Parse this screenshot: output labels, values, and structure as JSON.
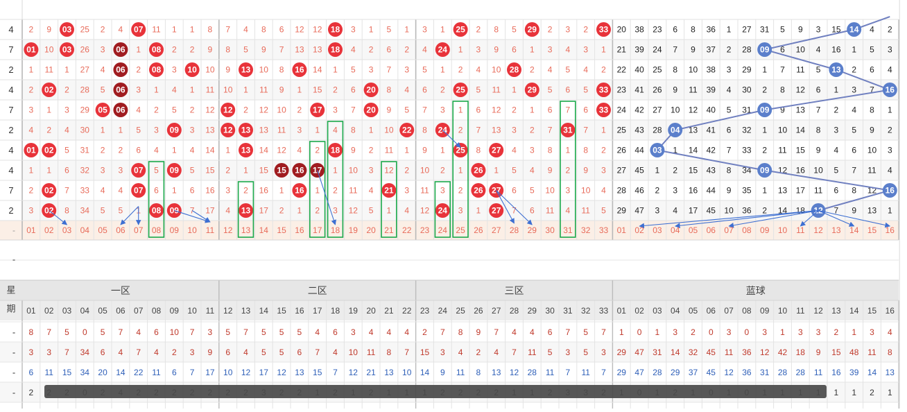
{
  "header_labels": {
    "week": "星",
    "period": "期",
    "zone_1": "一区",
    "zone_2": "二区",
    "zone_3": "三区",
    "blue": "蓝球"
  },
  "red_numbers": [
    "01",
    "02",
    "03",
    "04",
    "05",
    "06",
    "07",
    "08",
    "09",
    "10",
    "11",
    "12",
    "13",
    "14",
    "15",
    "16",
    "17",
    "18",
    "19",
    "20",
    "21",
    "22",
    "23",
    "24",
    "25",
    "26",
    "27",
    "28",
    "29",
    "30",
    "31",
    "32",
    "33"
  ],
  "blue_numbers": [
    "01",
    "02",
    "03",
    "04",
    "05",
    "06",
    "07",
    "08",
    "09",
    "10",
    "11",
    "12",
    "13",
    "14",
    "15",
    "16"
  ],
  "draw_row_labels": [
    "4",
    "7",
    "2",
    "4",
    "7",
    "2",
    "4",
    "4",
    "7",
    "2"
  ],
  "draws": [
    {
      "reds": [
        "03",
        "07",
        "18",
        "25",
        "29",
        "33"
      ],
      "blue": "14"
    },
    {
      "reds": [
        "01",
        "03",
        "06",
        "08",
        "18",
        "24"
      ],
      "blue": "09"
    },
    {
      "reds": [
        "06",
        "08",
        "10",
        "13",
        "16",
        "28"
      ],
      "blue": "13"
    },
    {
      "reds": [
        "02",
        "06",
        "20",
        "25",
        "29",
        "33"
      ],
      "blue": "16"
    },
    {
      "reds": [
        "05",
        "06",
        "12",
        "17",
        "20",
        "33"
      ],
      "blue": "09"
    },
    {
      "reds": [
        "09",
        "12",
        "13",
        "22",
        "24",
        "31"
      ],
      "blue": "04"
    },
    {
      "reds": [
        "01",
        "02",
        "13",
        "18",
        "25",
        "27"
      ],
      "blue": "03"
    },
    {
      "reds": [
        "07",
        "09",
        "15",
        "16",
        "17",
        "26"
      ],
      "blue": "09"
    },
    {
      "reds": [
        "02",
        "07",
        "16",
        "21",
        "26",
        "27"
      ],
      "blue": "16"
    },
    {
      "reds": [
        "02",
        "08",
        "09",
        "13",
        "24",
        "27"
      ],
      "blue": "12"
    }
  ],
  "history_rows": [
    "2 9 03 25 2 4 07 11 1 1 8 7 4 8 6 12 12 18 3 1 5 1 3 1 25 2 8 5 29 2 3 2 33 20 38 23 6 8 36 1 27 31 5 9 3 15 14 4 2",
    "01 10 03 26 3 06 1 08 2 2 9 8 5 9 7 13 13 18 4 2 6 2 4 24 1 3 9 6 1 3 4 3 1 21 39 24 7 9 37 2 28 09 6 10 4 16 1 5 3",
    "1 11 1 27 4 06 2 08 3 10 10 9 13 10 8 16 14 1 5 3 7 3 5 1 2 4 10 28 2 4 5 4 2 22 40 25 8 10 38 3 29 1 7 11 5 13 2 6 4",
    "2 02 2 28 5 06 3 1 4 1 11 10 1 11 9 1 15 2 6 20 8 4 6 2 25 5 11 1 29 5 6 5 33 23 41 26 9 11 39 4 30 2 8 12 6 1 3 7 16",
    "3 1 3 29 05 06 4 2 5 2 12 12 2 12 10 2 17 3 7 20 9 5 7 3 1 6 12 2 1 6 7 6 33 24 42 27 10 12 40 5 31 09 9 13 7 2 4 8 1",
    "4 2 4 30 1 1 5 3 09 3 13 12 13 13 11 3 1 4 8 1 10 22 8 24 2 7 13 3 2 7 31 7 1 25 43 28 04 13 41 6 32 1 10 14 8 3 5 9 2",
    "01 02 5 31 2 2 6 4 1 4 14 1 13 14 12 4 2 18 9 2 11 1 9 1 25 8 27 4 3 8 1 8 2 26 44 03 1 14 42 7 33 2 11 15 9 4 6 10 3",
    "1 1 6 32 3 3 07 5 09 5 15 2 1 15 15 16 17 1 10 3 12 2 10 2 1 26 1 5 4 9 2 9 3 27 45 1 2 15 43 8 34 09 12 16 10 5 7 11 4",
    "2 02 7 33 4 4 07 6 1 6 16 3 2 16 1 16 1 2 11 4 21 3 11 3 2 26 27 6 5 10 3 10 4 28 46 2 3 16 44 9 35 1 13 17 11 6 8 12 16",
    "3 02 8 34 5 5 1 08 09 7 17 4 13 17 2 1 2 3 12 5 1 4 12 24 3 1 27 7 6 11 4 11 5 29 47 3 4 17 45 10 36 2 14 18 12 7 9 13 1"
  ],
  "stats": [
    {
      "label": "-",
      "values": [
        "8",
        "7",
        "5",
        "0",
        "5",
        "7",
        "4",
        "6",
        "10",
        "7",
        "3",
        "5",
        "7",
        "5",
        "5",
        "5",
        "4",
        "6",
        "3",
        "4",
        "4",
        "4",
        "2",
        "7",
        "8",
        "9",
        "7",
        "4",
        "4",
        "6",
        "7",
        "5",
        "7",
        "1",
        "0",
        "1",
        "3",
        "2",
        "0",
        "3",
        "0",
        "3",
        "1",
        "3",
        "3",
        "2",
        "1",
        "3",
        "4"
      ]
    },
    {
      "label": "-",
      "values": [
        "3",
        "3",
        "7",
        "34",
        "6",
        "4",
        "7",
        "4",
        "2",
        "3",
        "9",
        "6",
        "4",
        "5",
        "5",
        "6",
        "7",
        "4",
        "10",
        "11",
        "8",
        "7",
        "15",
        "3",
        "4",
        "2",
        "4",
        "7",
        "11",
        "5",
        "3",
        "5",
        "3",
        "29",
        "47",
        "31",
        "14",
        "32",
        "45",
        "11",
        "36",
        "12",
        "42",
        "18",
        "9",
        "15",
        "48",
        "11",
        "8"
      ]
    },
    {
      "label": "-",
      "values": [
        "6",
        "11",
        "15",
        "34",
        "20",
        "14",
        "22",
        "11",
        "6",
        "7",
        "17",
        "10",
        "12",
        "17",
        "12",
        "13",
        "15",
        "7",
        "12",
        "21",
        "13",
        "10",
        "14",
        "9",
        "11",
        "8",
        "13",
        "12",
        "28",
        "11",
        "7",
        "11",
        "7",
        "29",
        "47",
        "28",
        "29",
        "37",
        "45",
        "12",
        "36",
        "31",
        "28",
        "28",
        "11",
        "16",
        "39",
        "14",
        "13"
      ]
    },
    {
      "label": "-",
      "values": [
        "2",
        "2",
        "2",
        "0",
        "2",
        "4",
        "2",
        "2",
        "2",
        "2",
        "2",
        "2",
        "2",
        "3",
        "2",
        "2",
        "1",
        "2",
        "1",
        "2",
        "1",
        "1",
        "1",
        "2",
        "2",
        "2",
        "2",
        "1",
        "1",
        "2",
        "3",
        "3",
        "2",
        "1",
        "0",
        "1",
        "2",
        "1",
        "0",
        "1",
        "0",
        "1",
        "1",
        "1",
        "1",
        "1",
        "1",
        "2",
        "1"
      ]
    }
  ],
  "blank_row_labels": [
    "-",
    "-"
  ],
  "colors": {
    "red_ball": "#e8333a",
    "dark_ball": "#a01c20",
    "blue_ball": "#5b7fcb",
    "trend_line": "#7080c0",
    "arrow": "#3d6fd2",
    "box": "#1aa84a",
    "miss_red": "#e86b5a",
    "miss_blue": "#3b6ec0"
  }
}
